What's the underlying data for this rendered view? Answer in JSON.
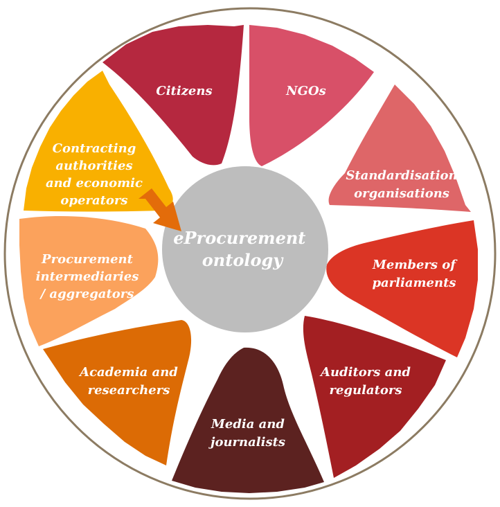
{
  "center": {
    "lines": [
      "eProcurement",
      "ontology"
    ],
    "color": "#bdbdbd"
  },
  "ring_color": "#8c7b62",
  "arrow_color": "#e36c0a",
  "segments": [
    {
      "key": "citizens",
      "lines": [
        "Citizens"
      ],
      "color": "#b5283f"
    },
    {
      "key": "ngos",
      "lines": [
        "NGOs"
      ],
      "color": "#d85068"
    },
    {
      "key": "standardisation",
      "lines": [
        "Standardisation",
        "organisations"
      ],
      "color": "#de6668"
    },
    {
      "key": "parliaments",
      "lines": [
        "Members of",
        "parliaments"
      ],
      "color": "#db3525"
    },
    {
      "key": "auditors",
      "lines": [
        "Auditors and",
        "regulators"
      ],
      "color": "#a31f22"
    },
    {
      "key": "media",
      "lines": [
        "Media and",
        "journalists"
      ],
      "color": "#5c2220"
    },
    {
      "key": "academia",
      "lines": [
        "Academia and",
        "researchers"
      ],
      "color": "#dc6b05"
    },
    {
      "key": "intermediaries",
      "lines": [
        "Procurement",
        "intermediaries",
        "/ aggregators"
      ],
      "color": "#fba25c"
    },
    {
      "key": "contracting",
      "lines": [
        "Contracting",
        "authorities",
        "and economic",
        "operators"
      ],
      "color": "#f9b000"
    }
  ]
}
